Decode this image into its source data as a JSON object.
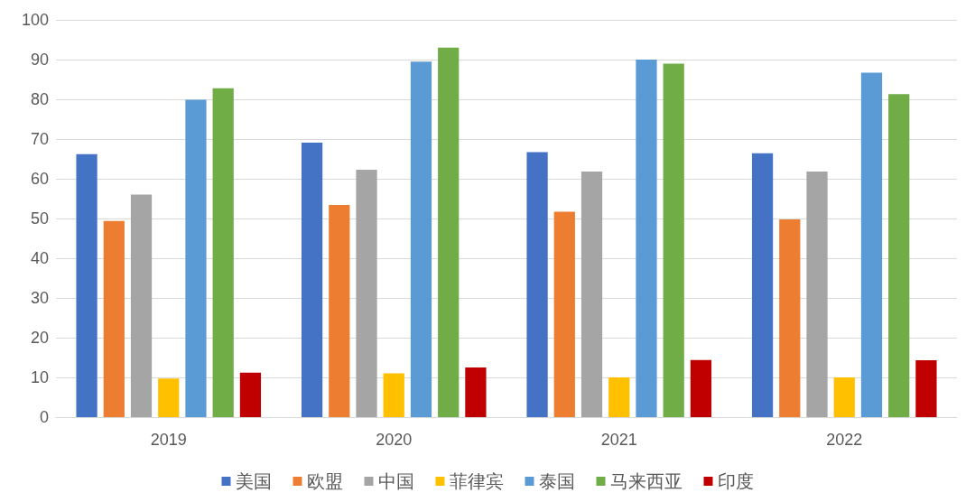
{
  "chart_data": {
    "type": "bar",
    "categories": [
      "2019",
      "2020",
      "2021",
      "2022"
    ],
    "series": [
      {
        "name": "美国",
        "color": "#4472c4",
        "values": [
          66.2,
          69.1,
          66.7,
          66.4
        ]
      },
      {
        "name": "欧盟",
        "color": "#ed7d31",
        "values": [
          49.4,
          53.4,
          51.7,
          49.8
        ]
      },
      {
        "name": "中国",
        "color": "#a5a5a5",
        "values": [
          56.0,
          62.3,
          61.8,
          61.8
        ]
      },
      {
        "name": "菲律宾",
        "color": "#ffc000",
        "values": [
          9.7,
          11.0,
          10.0,
          10.0
        ]
      },
      {
        "name": "泰国",
        "color": "#5b9bd5",
        "values": [
          79.9,
          89.5,
          90.0,
          86.7
        ]
      },
      {
        "name": "马来西亚",
        "color": "#70ad47",
        "values": [
          82.8,
          93.0,
          89.0,
          81.3
        ]
      },
      {
        "name": "印度",
        "color": "#c00000",
        "values": [
          11.2,
          12.5,
          14.4,
          14.3
        ]
      }
    ],
    "ylim": [
      0,
      100
    ],
    "yticks": [
      0,
      10,
      20,
      30,
      40,
      50,
      60,
      70,
      80,
      90,
      100
    ],
    "grid": "y",
    "legend": "bottom"
  }
}
